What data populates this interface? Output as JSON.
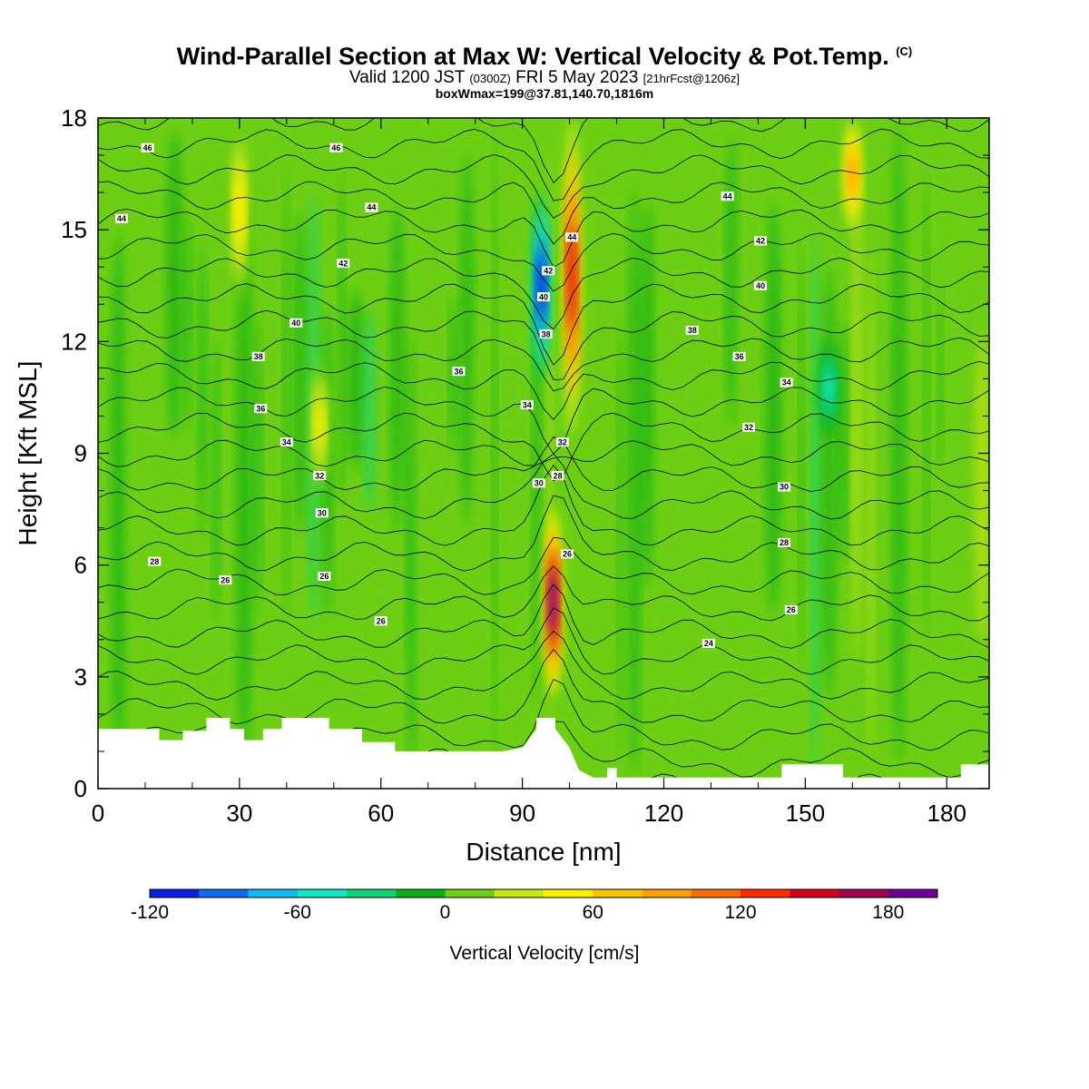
{
  "header": {
    "title": "Wind-Parallel Section at Max W: Vertical Velocity & Pot.Temp.",
    "title_mark": "(C)",
    "valid_prefix": "Valid 1200 JST",
    "valid_utc": "(0300Z)",
    "valid_date": "FRI 5 May 2023",
    "forecast_info": "[21hrFcst@1206z]",
    "box_info": "boxWmax=199@37.81,140.70,1816m"
  },
  "chart_data": {
    "type": "heatmap",
    "xlabel": "Distance [nm]",
    "ylabel": "Height [Kft MSL]",
    "xlim": [
      0,
      189
    ],
    "ylim": [
      0,
      18
    ],
    "x_ticks": [
      "0",
      "30",
      "60",
      "90",
      "120",
      "150",
      "180"
    ],
    "x_tick_values": [
      0,
      30,
      60,
      90,
      120,
      150,
      180
    ],
    "y_ticks": [
      "0",
      "3",
      "6",
      "9",
      "12",
      "15",
      "18"
    ],
    "y_tick_values": [
      0,
      3,
      6,
      9,
      12,
      15,
      18
    ],
    "colorbar": {
      "title": "Vertical Velocity [cm/s]",
      "min": -120,
      "max": 200,
      "step": 20,
      "tick_labels": [
        "-120",
        "-60",
        "0",
        "60",
        "120",
        "180"
      ],
      "tick_values": [
        -120,
        -60,
        0,
        60,
        120,
        180
      ],
      "colors": [
        "#0a1ee6",
        "#0d6ef0",
        "#0fbcf0",
        "#14e6c8",
        "#10d277",
        "#0aaf18",
        "#6ccf14",
        "#c8e614",
        "#fff000",
        "#ffc300",
        "#ffa000",
        "#ff6a00",
        "#ff2a00",
        "#d2001c",
        "#a00050",
        "#6e0096"
      ]
    },
    "terrain_kft": [
      [
        0,
        1.6
      ],
      [
        13,
        1.6
      ],
      [
        13,
        1.3
      ],
      [
        18,
        1.3
      ],
      [
        18,
        1.55
      ],
      [
        23,
        1.55
      ],
      [
        23,
        1.9
      ],
      [
        28,
        1.9
      ],
      [
        28,
        1.6
      ],
      [
        31,
        1.6
      ],
      [
        31,
        1.3
      ],
      [
        35,
        1.3
      ],
      [
        35,
        1.6
      ],
      [
        39,
        1.6
      ],
      [
        39,
        1.9
      ],
      [
        49,
        1.9
      ],
      [
        49,
        1.6
      ],
      [
        56,
        1.6
      ],
      [
        56,
        1.25
      ],
      [
        63,
        1.25
      ],
      [
        63,
        1.0
      ],
      [
        74,
        1.0
      ],
      [
        74,
        1.0
      ],
      [
        86,
        1.0
      ],
      [
        90,
        1.1
      ],
      [
        93,
        1.6
      ],
      [
        93,
        1.9
      ],
      [
        97,
        1.9
      ],
      [
        97,
        1.6
      ],
      [
        100,
        1.1
      ],
      [
        102,
        0.5
      ],
      [
        105,
        0.3
      ],
      [
        108,
        0.3
      ],
      [
        108,
        0.55
      ],
      [
        110,
        0.55
      ],
      [
        110,
        0.3
      ],
      [
        145,
        0.3
      ],
      [
        145,
        0.65
      ],
      [
        158,
        0.65
      ],
      [
        158,
        0.3
      ],
      [
        183,
        0.3
      ],
      [
        183,
        0.65
      ],
      [
        189,
        0.65
      ]
    ],
    "vertical_velocity_features": [
      {
        "x": 96.5,
        "z_range": [
          2.5,
          7.5
        ],
        "peak_cm_s": 199
      },
      {
        "x": 100.5,
        "z_range": [
          9.5,
          18
        ],
        "peak_cm_s": 150
      },
      {
        "x": 94,
        "z_range": [
          11,
          16
        ],
        "peak_cm_s": -110
      },
      {
        "x": 160,
        "z_range": [
          15,
          18
        ],
        "peak_cm_s": 80
      },
      {
        "x": 155,
        "z_range": [
          9.5,
          12
        ],
        "peak_cm_s": -50
      },
      {
        "x": 30,
        "z_range": [
          13,
          18
        ],
        "peak_cm_s": 55
      },
      {
        "x": 47,
        "z_range": [
          8,
          11.5
        ],
        "peak_cm_s": 40
      }
    ],
    "theta_contour_labels": [
      {
        "text": "46",
        "x": 10.5,
        "z": 17.2
      },
      {
        "text": "46",
        "x": 50.5,
        "z": 17.2
      },
      {
        "text": "44",
        "x": 5,
        "z": 15.3
      },
      {
        "text": "44",
        "x": 58,
        "z": 15.6
      },
      {
        "text": "44",
        "x": 100.5,
        "z": 14.8
      },
      {
        "text": "44",
        "x": 133.5,
        "z": 15.9
      },
      {
        "text": "42",
        "x": 52,
        "z": 14.1
      },
      {
        "text": "42",
        "x": 95.5,
        "z": 13.9
      },
      {
        "text": "42",
        "x": 140.5,
        "z": 14.7
      },
      {
        "text": "40",
        "x": 42,
        "z": 12.5
      },
      {
        "text": "40",
        "x": 94.5,
        "z": 13.2
      },
      {
        "text": "40",
        "x": 140.5,
        "z": 13.5
      },
      {
        "text": "38",
        "x": 34,
        "z": 11.6
      },
      {
        "text": "38",
        "x": 95,
        "z": 12.2
      },
      {
        "text": "38",
        "x": 126,
        "z": 12.3
      },
      {
        "text": "36",
        "x": 34.5,
        "z": 10.2
      },
      {
        "text": "36",
        "x": 76.5,
        "z": 11.2
      },
      {
        "text": "36",
        "x": 136,
        "z": 11.6
      },
      {
        "text": "34",
        "x": 40,
        "z": 9.3
      },
      {
        "text": "34",
        "x": 91,
        "z": 10.3
      },
      {
        "text": "34",
        "x": 146,
        "z": 10.9
      },
      {
        "text": "32",
        "x": 47,
        "z": 8.4
      },
      {
        "text": "32",
        "x": 98.5,
        "z": 9.3
      },
      {
        "text": "32",
        "x": 138,
        "z": 9.7
      },
      {
        "text": "30",
        "x": 47.5,
        "z": 7.4
      },
      {
        "text": "30",
        "x": 93.5,
        "z": 8.2
      },
      {
        "text": "30",
        "x": 145.5,
        "z": 8.1
      },
      {
        "text": "28",
        "x": 12,
        "z": 6.1
      },
      {
        "text": "28",
        "x": 97.5,
        "z": 8.4
      },
      {
        "text": "28",
        "x": 145.5,
        "z": 6.6
      },
      {
        "text": "26",
        "x": 27,
        "z": 5.6
      },
      {
        "text": "26",
        "x": 48,
        "z": 5.7
      },
      {
        "text": "26",
        "x": 99.5,
        "z": 6.3
      },
      {
        "text": "26",
        "x": 147,
        "z": 4.8
      },
      {
        "text": "26",
        "x": 60,
        "z": 4.5
      },
      {
        "text": "24",
        "x": 129.5,
        "z": 3.9
      }
    ]
  }
}
